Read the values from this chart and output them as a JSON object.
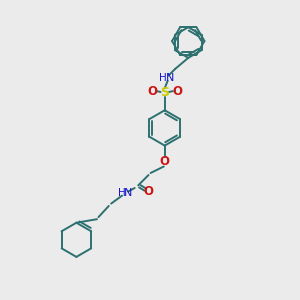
{
  "bg_color": "#ebebeb",
  "bond_color": "#2d7070",
  "N_color": "#1414cc",
  "O_color": "#cc1414",
  "S_color": "#cccc00",
  "line_width": 1.4,
  "figsize": [
    3.0,
    3.0
  ],
  "dpi": 100,
  "xlim": [
    0,
    10
  ],
  "ylim": [
    0,
    10
  ]
}
